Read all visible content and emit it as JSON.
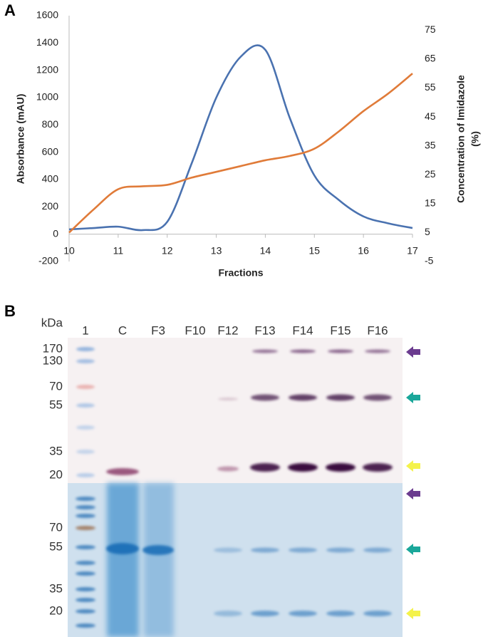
{
  "panel_labels": [
    "A",
    "B"
  ],
  "chart_data": {
    "type": "line",
    "x_label": "Fractions",
    "y_label": "Absorbance (mAU)",
    "y2_label": [
      "Concentration of Imidazole",
      "(%)"
    ],
    "x": [
      10,
      10.5,
      11,
      11.5,
      12,
      12.5,
      13,
      13.5,
      14,
      14.5,
      15,
      15.5,
      16,
      16.5,
      17
    ],
    "xlim": [
      10,
      17
    ],
    "xticks": [
      10,
      11,
      12,
      13,
      14,
      15,
      16,
      17
    ],
    "ylim": [
      -200,
      1600
    ],
    "yticks": [
      -200,
      0,
      200,
      400,
      600,
      800,
      1000,
      1200,
      1400,
      1600
    ],
    "y2lim": [
      -5,
      80
    ],
    "y2ticks": [
      -5,
      5,
      15,
      25,
      35,
      45,
      55,
      65,
      75
    ],
    "series": [
      {
        "color": "#4a72b0",
        "values": [
          35,
          45,
          55,
          30,
          90,
          520,
          1000,
          1300,
          1350,
          850,
          430,
          250,
          130,
          80,
          45
        ]
      },
      {
        "color": "#e07b39",
        "axis": "y2",
        "values": [
          5,
          13,
          20,
          21,
          21.5,
          24,
          26,
          28,
          30,
          31.5,
          34,
          40,
          47,
          53,
          60
        ]
      }
    ]
  },
  "gel": {
    "unit_label": "kDa",
    "lanes": [
      "1",
      "C",
      "F3",
      "F10",
      "F12",
      "F13",
      "F14",
      "F15",
      "F16"
    ],
    "upper_markers": [
      170,
      130,
      70,
      55,
      35,
      20
    ],
    "lower_markers": [
      70,
      55,
      35,
      20
    ]
  }
}
